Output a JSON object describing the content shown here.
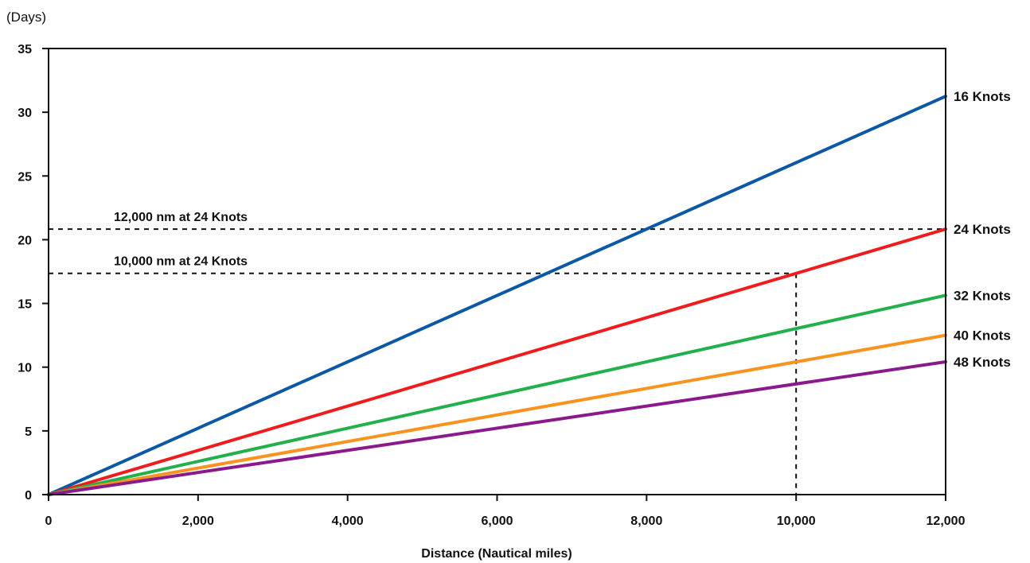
{
  "chart_data": {
    "type": "line",
    "unit_label": "(Days)",
    "xlabel": "Distance (Nautical miles)",
    "ylabel": "",
    "xlim": [
      0,
      12000
    ],
    "ylim": [
      0,
      35
    ],
    "x_ticks": [
      {
        "value": 0,
        "label": "0"
      },
      {
        "value": 2000,
        "label": "2,000"
      },
      {
        "value": 4000,
        "label": "4,000"
      },
      {
        "value": 6000,
        "label": "6,000"
      },
      {
        "value": 8000,
        "label": "8,000"
      },
      {
        "value": 10000,
        "label": "10,000"
      },
      {
        "value": 12000,
        "label": "12,000"
      }
    ],
    "y_ticks": [
      {
        "value": 0,
        "label": "0"
      },
      {
        "value": 5,
        "label": "5"
      },
      {
        "value": 10,
        "label": "10"
      },
      {
        "value": 15,
        "label": "15"
      },
      {
        "value": 20,
        "label": "20"
      },
      {
        "value": 25,
        "label": "25"
      },
      {
        "value": 30,
        "label": "30"
      },
      {
        "value": 35,
        "label": "35"
      }
    ],
    "grid": false,
    "legend": "labels at line ends (right)",
    "series": [
      {
        "name": "16 Knots",
        "color": "#0d58a3",
        "x": [
          0,
          12000
        ],
        "y": [
          0,
          31.25
        ]
      },
      {
        "name": "24 Knots",
        "color": "#ee1c1c",
        "x": [
          0,
          12000
        ],
        "y": [
          0,
          20.83
        ]
      },
      {
        "name": "32 Knots",
        "color": "#21b04b",
        "x": [
          0,
          12000
        ],
        "y": [
          0,
          15.63
        ]
      },
      {
        "name": "40 Knots",
        "color": "#f7931e",
        "x": [
          0,
          12000
        ],
        "y": [
          0,
          12.5
        ]
      },
      {
        "name": "48 Knots",
        "color": "#8a1a8c",
        "x": [
          0,
          12000
        ],
        "y": [
          0,
          10.42
        ]
      }
    ],
    "annotations": [
      {
        "text": "12,000 nm at 24 Knots",
        "x": 12000,
        "y": 20.83,
        "vertical_drop": false
      },
      {
        "text": "10,000 nm at 24 Knots",
        "x": 10000,
        "y": 17.36,
        "vertical_drop": true
      }
    ]
  }
}
